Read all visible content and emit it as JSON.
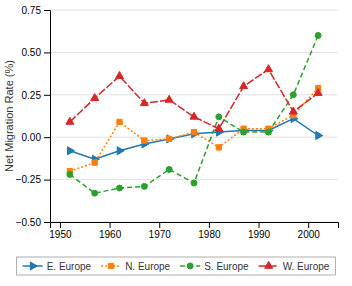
{
  "chart_data": {
    "type": "line",
    "y_label": "Net Migration Rate (%)",
    "x": [
      1952,
      1957,
      1962,
      1967,
      1972,
      1977,
      1982,
      1987,
      1992,
      1997,
      2002
    ],
    "series": [
      {
        "name": "E. Europe",
        "marker": "triangle-right",
        "line_style": "solid",
        "values": [
          -0.08,
          -0.13,
          -0.08,
          -0.04,
          -0.01,
          0.02,
          0.03,
          0.04,
          0.04,
          0.11,
          0.01
        ]
      },
      {
        "name": "N. Europe",
        "marker": "square",
        "line_style": "dotted",
        "values": [
          -0.2,
          -0.15,
          0.09,
          -0.02,
          -0.01,
          0.03,
          -0.06,
          0.05,
          0.05,
          0.13,
          0.29
        ]
      },
      {
        "name": "S. Europe",
        "marker": "circle",
        "line_style": "dashed",
        "values": [
          -0.22,
          -0.33,
          -0.3,
          -0.29,
          -0.19,
          -0.27,
          0.12,
          0.03,
          0.03,
          0.25,
          0.6
        ]
      },
      {
        "name": "W. Europe",
        "marker": "triangle",
        "line_style": "long-dashed",
        "values": [
          0.09,
          0.23,
          0.36,
          0.2,
          0.22,
          0.12,
          0.05,
          0.3,
          0.4,
          0.15,
          0.26
        ]
      }
    ],
    "xlim": [
      1948,
      2006
    ],
    "xticks": [
      1950,
      1960,
      1970,
      1980,
      1990,
      2000
    ],
    "ylim": [
      -0.5,
      0.75
    ],
    "yticks": [
      {
        "value": -0.5,
        "label": "−0.50"
      },
      {
        "value": -0.25,
        "label": "−0.25"
      },
      {
        "value": 0.0,
        "label": "0.00"
      },
      {
        "value": 0.25,
        "label": "0.25"
      },
      {
        "value": 0.5,
        "label": "0.50"
      },
      {
        "value": 0.75,
        "label": "0.75"
      }
    ],
    "grid": true,
    "legend": "bottom"
  }
}
